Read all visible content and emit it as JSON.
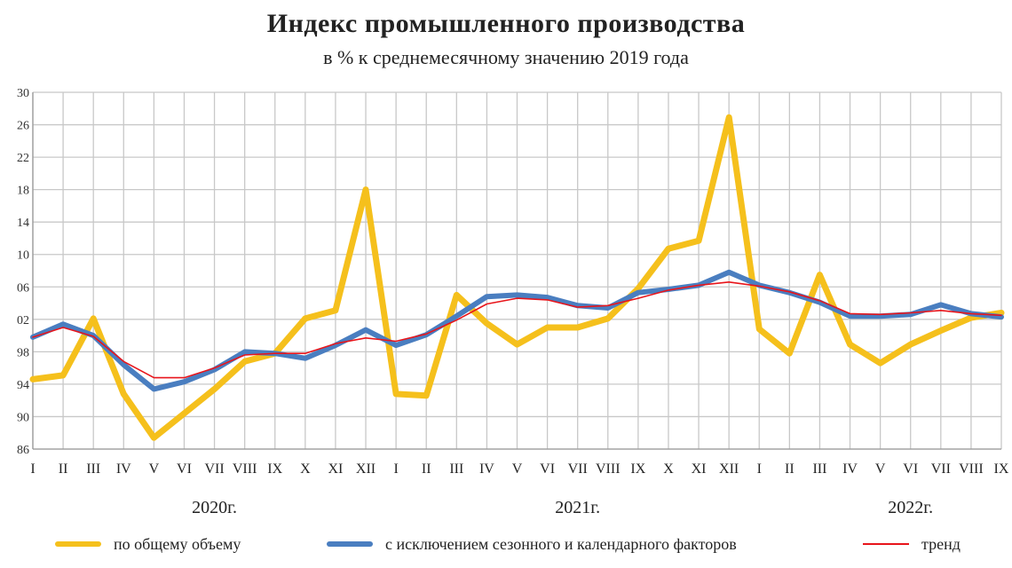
{
  "title": "Индекс промышленного производства",
  "subtitle": "в % к среднемесячному значению 2019 года",
  "chart_data": {
    "type": "line",
    "y_ticks": [
      "86",
      "90",
      "94",
      "98",
      "02",
      "06",
      "10",
      "14",
      "18",
      "22",
      "26",
      "30"
    ],
    "ylim": [
      86,
      130
    ],
    "categories": [
      "I",
      "II",
      "III",
      "IV",
      "V",
      "VI",
      "VII",
      "VIII",
      "IX",
      "X",
      "XI",
      "XII",
      "I",
      "II",
      "III",
      "IV",
      "V",
      "VI",
      "VII",
      "VIII",
      "IX",
      "X",
      "XI",
      "XII",
      "I",
      "II",
      "III",
      "IV",
      "V",
      "VI",
      "VII",
      "VIII",
      "IX"
    ],
    "year_labels": [
      {
        "label": "2020г.",
        "month_index": 6
      },
      {
        "label": "2021г.",
        "month_index": 18
      },
      {
        "label": "2022г.",
        "month_index": 29
      }
    ],
    "grid": true,
    "legend_position": "bottom",
    "series": [
      {
        "name": "по общему объему",
        "color": "#f5c01c",
        "values": [
          94.6,
          95.1,
          102.1,
          92.8,
          87.4,
          90.4,
          93.4,
          96.8,
          97.8,
          102.1,
          103.1,
          118.0,
          92.8,
          92.6,
          105.0,
          101.5,
          98.9,
          101.0,
          101.0,
          102.1,
          105.8,
          110.7,
          111.7,
          126.9,
          100.8,
          97.8,
          107.5,
          98.9,
          96.6,
          98.9,
          100.6,
          102.2,
          102.8
        ]
      },
      {
        "name": "с исключением сезонного и календарного факторов",
        "color": "#4a7ec0",
        "values": [
          99.8,
          101.4,
          100.0,
          96.4,
          93.4,
          94.3,
          95.8,
          98.0,
          97.8,
          97.2,
          98.8,
          100.7,
          98.8,
          100.1,
          102.4,
          104.8,
          105.0,
          104.7,
          103.7,
          103.4,
          105.3,
          105.7,
          106.2,
          107.8,
          106.2,
          105.3,
          104.1,
          102.4,
          102.4,
          102.6,
          103.8,
          102.7,
          102.3
        ]
      },
      {
        "name": "тренд",
        "color": "#e8151b",
        "values": [
          99.8,
          101.0,
          99.9,
          96.8,
          94.8,
          94.8,
          96.0,
          97.6,
          97.8,
          97.8,
          99.0,
          99.7,
          99.3,
          100.2,
          101.9,
          103.9,
          104.6,
          104.4,
          103.5,
          103.7,
          104.6,
          105.6,
          106.2,
          106.6,
          106.1,
          105.4,
          104.3,
          102.7,
          102.6,
          102.8,
          103.1,
          102.7,
          102.5
        ]
      }
    ]
  }
}
